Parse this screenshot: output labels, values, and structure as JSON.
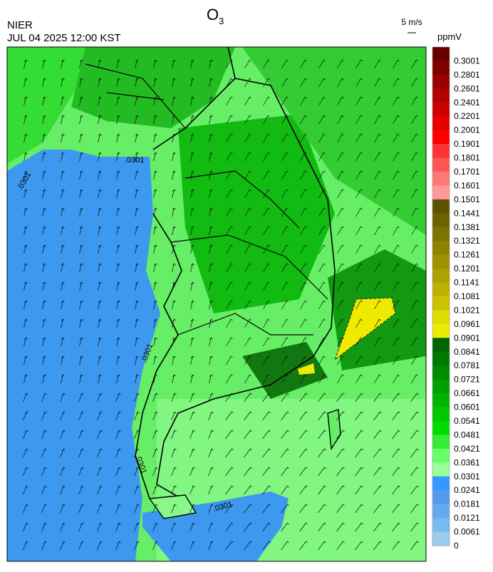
{
  "header": {
    "title": "O",
    "title_subscript": "3",
    "agency": "NIER",
    "datetime": "JUL 04 2025 12:00 KST",
    "wind_scale": "5 m/s",
    "unit": "ppmV"
  },
  "colorbar": {
    "labels": [
      "0.3001",
      "0.2801",
      "0.2601",
      "0.2401",
      "0.2201",
      "0.2001",
      "0.1901",
      "0.1801",
      "0.1701",
      "0.1601",
      "0.1501",
      "0.1441",
      "0.1381",
      "0.1321",
      "0.1261",
      "0.1201",
      "0.1141",
      "0.1081",
      "0.1021",
      "0.0961",
      "0.0901",
      "0.0841",
      "0.0781",
      "0.0721",
      "0.0661",
      "0.0601",
      "0.0541",
      "0.0481",
      "0.0421",
      "0.0361",
      "0.0301",
      "0.0241",
      "0.0181",
      "0.0121",
      "0.0061",
      "0"
    ],
    "colors": [
      "#660000",
      "#800000",
      "#990000",
      "#b30000",
      "#cc0000",
      "#e60000",
      "#ff0000",
      "#ff3333",
      "#ff5555",
      "#ff7777",
      "#ff9999",
      "#5e5200",
      "#6e6200",
      "#7e7200",
      "#8e8200",
      "#9e9200",
      "#aea200",
      "#beb200",
      "#cec200",
      "#dedc00",
      "#eeea00",
      "#006400",
      "#007800",
      "#008c00",
      "#00a000",
      "#00b400",
      "#00c800",
      "#00dc00",
      "#33ee33",
      "#66ff66",
      "#99ff99",
      "#3399ff",
      "#5599ee",
      "#66aaee",
      "#77bbee",
      "#99ccee"
    ]
  },
  "contour_labels": [
    ".0301",
    ".0301",
    ".0301",
    ".0301",
    ".0301"
  ]
}
